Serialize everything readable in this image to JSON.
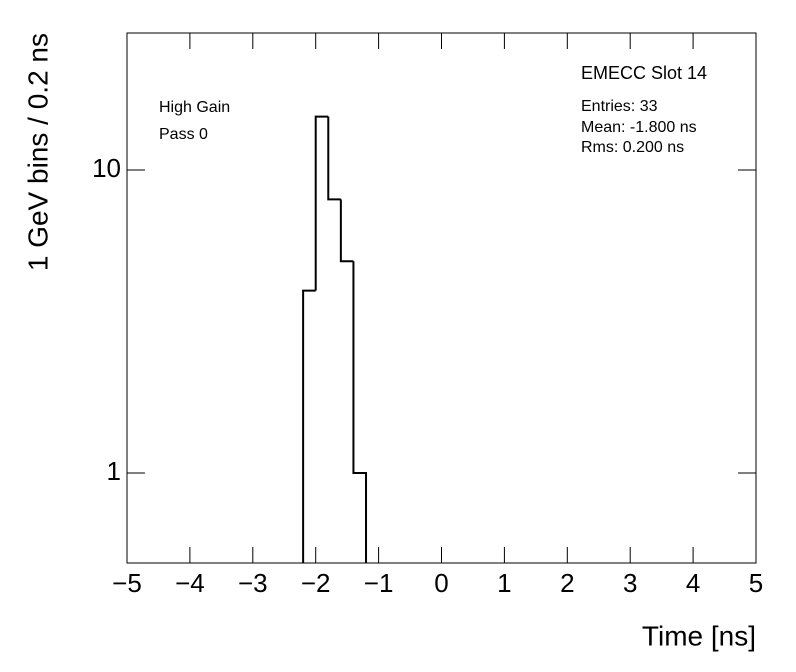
{
  "chart_data": {
    "type": "histogram",
    "xlabel": "Time [ns]",
    "ylabel": "1 GeV bins / 0.2 ns",
    "bins": [
      -2.2,
      -2.0,
      -1.8,
      -1.6,
      -1.4,
      -1.2
    ],
    "values": [
      4,
      15,
      8,
      5,
      1
    ],
    "color": "#000000",
    "log_y": true,
    "xlim": [
      -5,
      5
    ],
    "xticks": [
      {
        "value": -5,
        "label": "−5"
      },
      {
        "value": -4,
        "label": "−4"
      },
      {
        "value": -3,
        "label": "−3"
      },
      {
        "value": -2,
        "label": "−2"
      },
      {
        "value": -1,
        "label": "−1"
      },
      0,
      1,
      2,
      3,
      4,
      5
    ],
    "ylim": [
      0.505,
      28.3
    ],
    "yticks": [
      1,
      10
    ],
    "title": "EMECC Slot 14",
    "stats": [
      "Entries: 33",
      "Mean: -1.800 ns",
      "Rms: 0.200 ns"
    ],
    "annotations": [
      "High Gain",
      "Pass 0"
    ]
  }
}
